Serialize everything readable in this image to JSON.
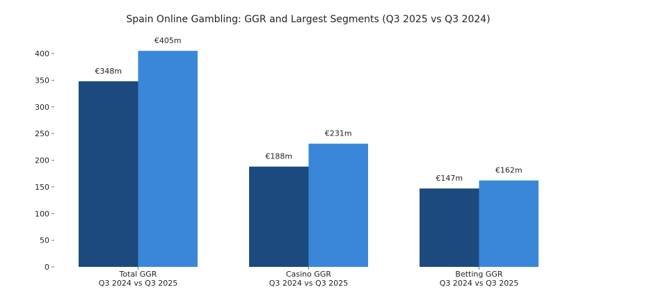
{
  "chart_data": {
    "type": "bar",
    "title": "Spain Online Gambling: GGR and Largest Segments (Q3 2025 vs Q3 2024)",
    "xlabel": "",
    "ylabel": "",
    "categories": [
      {
        "line1": "Total GGR",
        "line2": "Q3 2024 vs Q3 2025"
      },
      {
        "line1": "Casino GGR",
        "line2": "Q3 2024 vs Q3 2025"
      },
      {
        "line1": "Betting GGR",
        "line2": "Q3 2024 vs Q3 2025"
      }
    ],
    "series": [
      {
        "values": [
          348,
          188,
          147
        ],
        "labels": [
          "€348m",
          "€188m",
          "€147m"
        ],
        "color": "#1c4a7e"
      },
      {
        "values": [
          405,
          231,
          162
        ],
        "labels": [
          "€405m",
          "€231m",
          "€162m"
        ],
        "color": "#3a87d9"
      }
    ],
    "ylim": [
      0,
      430
    ],
    "yticks": [
      0,
      50,
      100,
      150,
      200,
      250,
      300,
      350,
      400
    ],
    "grid": false,
    "legend": "none"
  }
}
